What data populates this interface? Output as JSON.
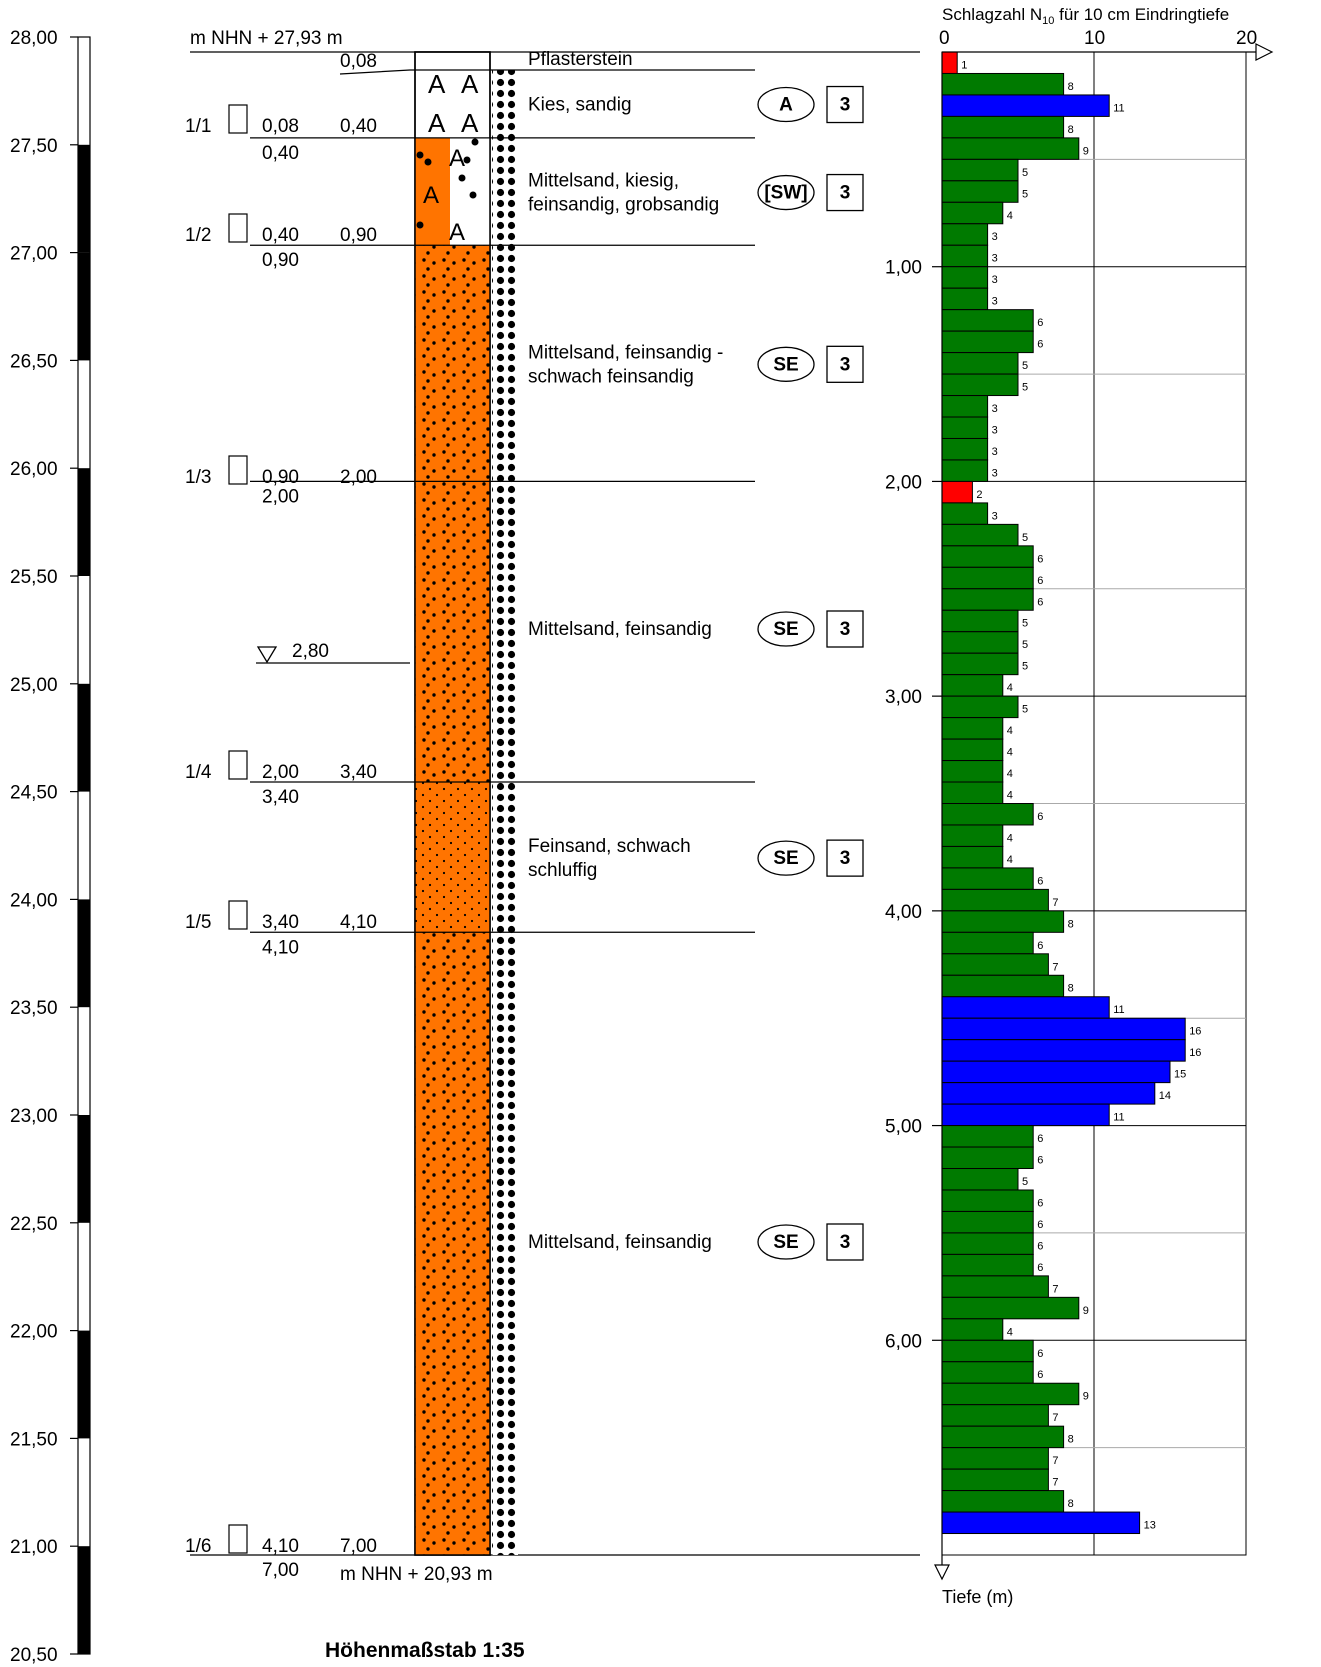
{
  "elevation_scale": {
    "ticks": [
      "28,00",
      "27,50",
      "27,00",
      "26,50",
      "26,00",
      "25,50",
      "25,00",
      "24,50",
      "24,00",
      "23,50",
      "23,00",
      "22,50",
      "22,00",
      "21,50",
      "21,00",
      "20,50"
    ]
  },
  "header": {
    "top_elevation": "m NHN + 27,93 m",
    "bottom_elevation": "m NHN + 20,93 m",
    "scale_caption": "Höhenmaßstab 1:35"
  },
  "samples": [
    {
      "id": "1/1",
      "from": "0,08",
      "to": "0,40"
    },
    {
      "id": "1/2",
      "from": "0,40",
      "to": "0,90"
    },
    {
      "id": "1/3",
      "from": "0,90",
      "to": "2,00"
    },
    {
      "id": "1/4",
      "from": "2,00",
      "to": "3,40"
    },
    {
      "id": "1/5",
      "from": "3,40",
      "to": "4,10"
    },
    {
      "id": "1/6",
      "from": "4,10",
      "to": "7,00"
    }
  ],
  "layer_boundaries": [
    {
      "depth": "0,08",
      "upper_label": "0,08",
      "lower_label": ""
    },
    {
      "depth": "0,40",
      "upper_label": "",
      "lower_label": "0,40"
    },
    {
      "depth": "0,90",
      "upper_label": "",
      "lower_label": "0,90"
    },
    {
      "depth": "2,00",
      "upper_label": "",
      "lower_label": "2,00"
    },
    {
      "depth": "3,40",
      "upper_label": "",
      "lower_label": "3,40"
    },
    {
      "depth": "4,10",
      "upper_label": "",
      "lower_label": "4,10"
    },
    {
      "depth": "7,00",
      "upper_label": "",
      "lower_label": "7,00"
    }
  ],
  "groundwater": {
    "depth": "2,80"
  },
  "layers": [
    {
      "from": 0.0,
      "to": 0.08,
      "description": [
        "Pflasterstein"
      ],
      "group": "",
      "class": ""
    },
    {
      "from": 0.08,
      "to": 0.4,
      "description": [
        "Kies, sandig"
      ],
      "group": "A",
      "class": "3"
    },
    {
      "from": 0.4,
      "to": 0.9,
      "description": [
        "Mittelsand, kiesig,",
        "feinsandig, grobsandig"
      ],
      "group": "[SW]",
      "class": "3"
    },
    {
      "from": 0.9,
      "to": 2.0,
      "description": [
        "Mittelsand, feinsandig -",
        "schwach feinsandig"
      ],
      "group": "SE",
      "class": "3"
    },
    {
      "from": 2.0,
      "to": 3.4,
      "description": [
        "Mittelsand, feinsandig"
      ],
      "group": "SE",
      "class": "3"
    },
    {
      "from": 3.4,
      "to": 4.1,
      "description": [
        "Feinsand, schwach",
        "schluffig"
      ],
      "group": "SE",
      "class": "3"
    },
    {
      "from": 4.1,
      "to": 7.0,
      "description": [
        "Mittelsand, feinsandig"
      ],
      "group": "SE",
      "class": "3"
    }
  ],
  "colors": {
    "sand": "#ff7400",
    "low": "#ff0000",
    "medium": "#007a00",
    "high": "#0000ff"
  },
  "chart_data": {
    "type": "bar",
    "orientation": "horizontal",
    "title": "Schlagzahl N10 für 10 cm Eindringtiefe",
    "xlabel": "Schlagzahl N10 für 10 cm Eindringtiefe",
    "ylabel": "Tiefe (m)",
    "xlim": [
      0,
      20
    ],
    "ylim": [
      0,
      7
    ],
    "x_ticks": [
      "0",
      "10",
      "20"
    ],
    "y_ticks": [
      "1,00",
      "2,00",
      "3,00",
      "4,00",
      "5,00",
      "6,00"
    ],
    "depth_step": 0.1,
    "values": [
      1,
      8,
      11,
      8,
      9,
      5,
      5,
      4,
      3,
      3,
      3,
      3,
      6,
      6,
      5,
      5,
      3,
      3,
      3,
      3,
      2,
      3,
      5,
      6,
      6,
      6,
      5,
      5,
      5,
      4,
      5,
      4,
      4,
      4,
      4,
      6,
      4,
      4,
      6,
      7,
      8,
      6,
      7,
      8,
      11,
      16,
      16,
      15,
      14,
      11,
      6,
      6,
      5,
      6,
      6,
      6,
      6,
      7,
      9,
      4,
      6,
      6,
      9,
      7,
      8,
      7,
      7,
      8,
      13
    ],
    "thresholds": {
      "low_max": 2,
      "high_min": 10
    }
  }
}
